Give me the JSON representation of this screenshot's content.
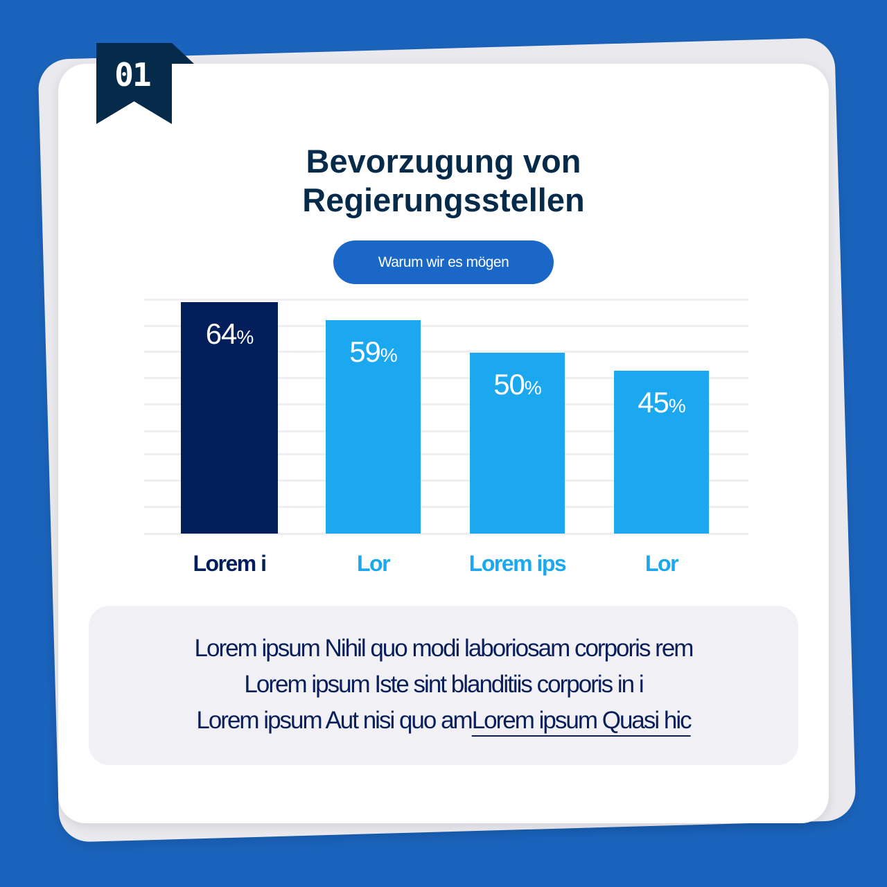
{
  "badge": {
    "number": "01"
  },
  "header": {
    "title_line1": "Bevorzugung von",
    "title_line2": "Regierungsstellen",
    "pill_label": "Warum wir es mögen"
  },
  "colors": {
    "background": "#1b64bd",
    "badge": "#062b4a",
    "title": "#062b4a",
    "pill": "#1a67c7",
    "highlight_bar": "#021f5c",
    "bar": "#1ca8ef",
    "text": "#0a1f5a"
  },
  "chart_data": {
    "type": "bar",
    "title": "Bevorzugung von Regierungsstellen",
    "subtitle": "Warum wir es mögen",
    "categories": [
      "Lorem i",
      "Lor",
      "Lorem ips",
      "Lor"
    ],
    "values": [
      64,
      59,
      50,
      45
    ],
    "value_labels": [
      "64",
      "59",
      "50",
      "45"
    ],
    "value_suffix": "%",
    "highlighted_index": 0,
    "xlabel": "",
    "ylabel": "",
    "ylim": [
      0,
      64
    ],
    "grid": true,
    "legend": "none"
  },
  "description": {
    "line1": "Lorem ipsum Nihil quo modi laboriosam corporis rem",
    "line2": "Lorem ipsum Iste sint blanditiis corporis in i",
    "line3_text": "Lorem ipsum Aut nisi quo am",
    "line3_link": "Lorem ipsum Quasi hic"
  }
}
